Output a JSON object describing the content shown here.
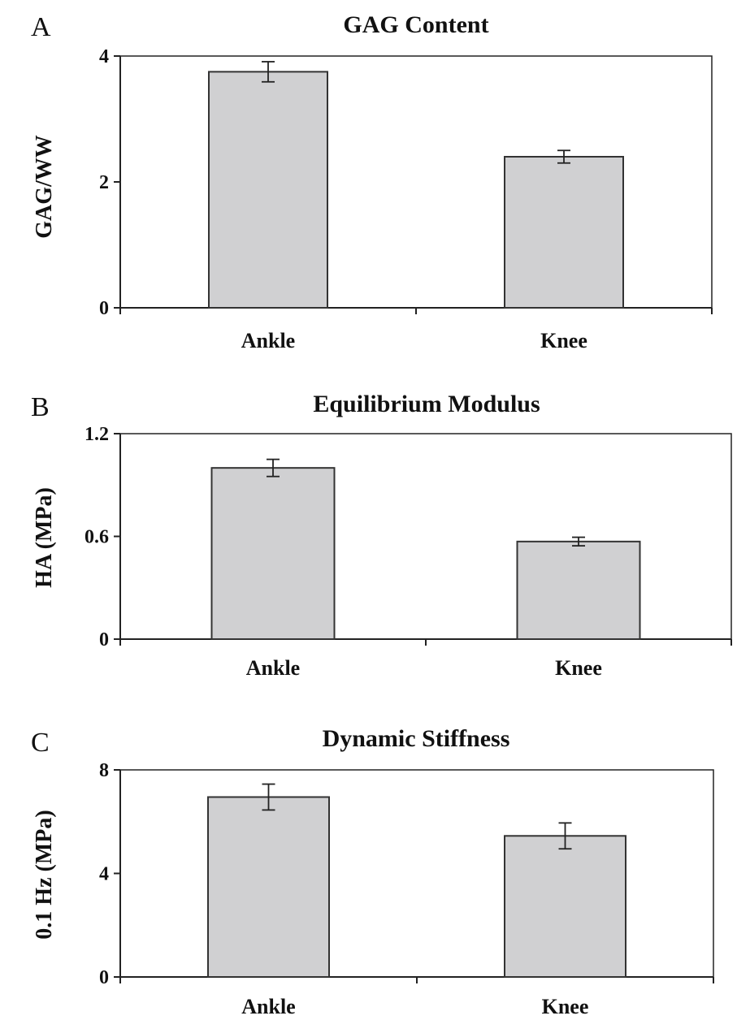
{
  "chart_data": [
    {
      "type": "bar",
      "panel": "A",
      "title": "GAG Content",
      "xlabel": "",
      "ylabel": "GAG/WW",
      "categories": [
        "Ankle",
        "Knee"
      ],
      "values": [
        3.75,
        2.4
      ],
      "errors": [
        0.16,
        0.1
      ],
      "ylim": [
        0,
        4
      ],
      "yticks": [
        "0",
        "2",
        "4"
      ],
      "bar_color": "#d0d0d2",
      "grid": false,
      "legend": "none"
    },
    {
      "type": "bar",
      "panel": "B",
      "title": "Equilibrium Modulus",
      "xlabel": "",
      "ylabel": "HA (MPa)",
      "categories": [
        "Ankle",
        "Knee"
      ],
      "values": [
        1.0,
        0.57
      ],
      "errors": [
        0.05,
        0.025
      ],
      "ylim": [
        0,
        1.2
      ],
      "yticks": [
        "0",
        "0.6",
        "1.2"
      ],
      "bar_color": "#d0d0d2",
      "grid": false,
      "legend": "none"
    },
    {
      "type": "bar",
      "panel": "C",
      "title": "Dynamic Stiffness",
      "xlabel": "",
      "ylabel": "0.1 Hz (MPa)",
      "categories": [
        "Ankle",
        "Knee"
      ],
      "values": [
        6.95,
        5.45
      ],
      "errors": [
        0.5,
        0.5
      ],
      "ylim": [
        0,
        8
      ],
      "yticks": [
        "0",
        "4",
        "8"
      ],
      "bar_color": "#d0d0d2",
      "grid": false,
      "legend": "none"
    }
  ]
}
